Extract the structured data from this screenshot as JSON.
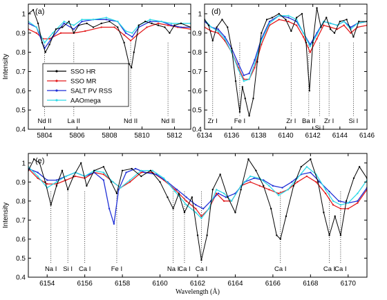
{
  "colors": {
    "SSO HR": "#000000",
    "SSO MR": "#e31a1c",
    "SALT PV RSS": "#1f2fd6",
    "AAOmega": "#2fd9e8"
  },
  "chart_data": [
    {
      "panel_label": "(a)",
      "type": "line",
      "xlim": [
        5803,
        5813
      ],
      "ylim": [
        0.4,
        1.05
      ],
      "xticks": [
        5804,
        5806,
        5808,
        5810,
        5812
      ],
      "yticks": [
        0.4,
        0.5,
        0.6,
        0.7,
        0.8,
        0.9,
        1
      ],
      "xlabel": "",
      "ylabel": "Intensity",
      "legend": {
        "placement": "lower-left",
        "entries": [
          "SSO HR",
          "SSO MR",
          "SALT PV RSS",
          "AAOmega"
        ]
      },
      "lines": [
        {
          "x": 5804.0,
          "label": "Nd II"
        },
        {
          "x": 5805.8,
          "label": "La II"
        },
        {
          "x": 5809.3,
          "label": "Nd II"
        },
        {
          "x": 5811.6,
          "label": "Nd II"
        }
      ],
      "series": [
        {
          "name": "SSO HR",
          "x": [
            5803,
            5803.3,
            5803.6,
            5803.85,
            5804.05,
            5804.3,
            5804.7,
            5805.1,
            5805.5,
            5805.8,
            5806.1,
            5806.6,
            5807.0,
            5807.5,
            5808.0,
            5808.5,
            5808.9,
            5809.2,
            5809.35,
            5809.5,
            5809.8,
            5810.2,
            5810.6,
            5811.0,
            5811.4,
            5811.7,
            5812.0,
            5812.4,
            5813
          ],
          "y": [
            1.0,
            1.02,
            0.95,
            0.85,
            0.8,
            0.84,
            0.92,
            0.93,
            0.96,
            0.9,
            0.94,
            0.95,
            0.93,
            0.95,
            0.96,
            0.93,
            0.85,
            0.74,
            0.72,
            0.8,
            0.94,
            0.96,
            0.95,
            0.94,
            0.93,
            0.9,
            0.94,
            0.95,
            0.93
          ]
        },
        {
          "name": "SSO MR",
          "x": [
            5803,
            5803.5,
            5803.9,
            5804.3,
            5805.0,
            5805.8,
            5806.5,
            5807.5,
            5808.3,
            5808.9,
            5809.3,
            5809.7,
            5810.3,
            5811.0,
            5811.6,
            5812.2,
            5813
          ],
          "y": [
            0.92,
            0.9,
            0.87,
            0.87,
            0.9,
            0.9,
            0.91,
            0.93,
            0.93,
            0.89,
            0.86,
            0.89,
            0.93,
            0.95,
            0.94,
            0.93,
            0.92
          ]
        },
        {
          "name": "SALT PV RSS",
          "x": [
            5803,
            5803.5,
            5804.0,
            5804.5,
            5805.2,
            5805.8,
            5806.3,
            5807.0,
            5807.8,
            5808.5,
            5809.0,
            5809.4,
            5809.8,
            5810.5,
            5811.2,
            5811.8,
            5812.4,
            5813
          ],
          "y": [
            0.95,
            0.93,
            0.82,
            0.88,
            0.95,
            0.92,
            0.96,
            0.97,
            0.97,
            0.96,
            0.9,
            0.88,
            0.93,
            0.96,
            0.96,
            0.94,
            0.93,
            0.93
          ]
        },
        {
          "name": "AAOmega",
          "x": [
            5803,
            5803.5,
            5804.0,
            5804.5,
            5805.2,
            5805.8,
            5806.3,
            5807.0,
            5807.8,
            5808.5,
            5809.0,
            5809.4,
            5809.8,
            5810.5,
            5811.2,
            5811.8,
            5812.4,
            5813
          ],
          "y": [
            0.96,
            0.93,
            0.85,
            0.9,
            0.96,
            0.94,
            0.97,
            0.97,
            0.98,
            0.96,
            0.91,
            0.9,
            0.94,
            0.97,
            0.96,
            0.95,
            0.95,
            0.95
          ]
        }
      ]
    },
    {
      "panel_label": "(d)",
      "type": "line",
      "xlim": [
        6134,
        6146
      ],
      "ylim": [
        0.4,
        1.05
      ],
      "xticks": [
        6134,
        6136,
        6138,
        6140,
        6142,
        6144,
        6146
      ],
      "yticks": [
        0.4,
        0.5,
        0.6,
        0.7,
        0.8,
        0.9,
        1
      ],
      "xlabel": "",
      "ylabel": "",
      "lines": [
        {
          "x": 6134.6,
          "label": "Zr I"
        },
        {
          "x": 6136.6,
          "label": "Fe I"
        },
        {
          "x": 6140.4,
          "label": "Zr I"
        },
        {
          "x": 6141.7,
          "label": "Ba II"
        },
        {
          "x": 6142.5,
          "label": "Si I"
        },
        {
          "x": 6143.2,
          "label": "Zr I"
        },
        {
          "x": 6145.0,
          "label": "Si I"
        }
      ],
      "series": [
        {
          "name": "SSO HR",
          "x": [
            6134,
            6134.3,
            6134.6,
            6134.9,
            6135.3,
            6135.7,
            6136.0,
            6136.3,
            6136.6,
            6136.8,
            6137.0,
            6137.3,
            6137.6,
            6137.9,
            6138.2,
            6138.6,
            6139.0,
            6139.5,
            6140.0,
            6140.4,
            6140.8,
            6141.2,
            6141.5,
            6141.75,
            6142.0,
            6142.3,
            6142.6,
            6143.0,
            6143.3,
            6143.6,
            6144.0,
            6144.5,
            6145.0,
            6145.4,
            6146
          ],
          "y": [
            0.97,
            0.94,
            0.86,
            0.93,
            0.97,
            0.93,
            0.82,
            0.65,
            0.49,
            0.62,
            0.56,
            0.47,
            0.56,
            0.75,
            0.9,
            0.97,
            0.98,
            1.0,
            0.97,
            0.91,
            0.98,
            1.0,
            0.85,
            0.6,
            0.85,
            1.03,
            0.93,
            0.98,
            0.92,
            0.9,
            0.96,
            0.97,
            0.88,
            0.96,
            0.96
          ]
        },
        {
          "name": "SSO MR",
          "x": [
            6134,
            6134.5,
            6135.0,
            6135.5,
            6136.0,
            6136.5,
            6136.9,
            6137.3,
            6137.7,
            6138.2,
            6138.8,
            6139.5,
            6140.2,
            6140.8,
            6141.3,
            6141.8,
            6142.3,
            6142.8,
            6143.3,
            6143.8,
            6144.3,
            6144.8,
            6145.3,
            6146
          ],
          "y": [
            0.93,
            0.91,
            0.9,
            0.86,
            0.8,
            0.72,
            0.66,
            0.66,
            0.72,
            0.84,
            0.94,
            0.97,
            0.96,
            0.94,
            0.88,
            0.8,
            0.87,
            0.94,
            0.93,
            0.92,
            0.94,
            0.9,
            0.93,
            0.94
          ]
        },
        {
          "name": "SALT PV RSS",
          "x": [
            6134,
            6134.5,
            6135.0,
            6135.5,
            6136.0,
            6136.5,
            6136.9,
            6137.3,
            6137.7,
            6138.2,
            6138.8,
            6139.5,
            6140.2,
            6140.8,
            6141.3,
            6141.8,
            6142.3,
            6142.8,
            6143.3,
            6143.8,
            6144.3,
            6144.8,
            6145.3,
            6146
          ],
          "y": [
            0.96,
            0.93,
            0.92,
            0.88,
            0.82,
            0.74,
            0.68,
            0.69,
            0.76,
            0.87,
            0.96,
            0.99,
            0.98,
            0.96,
            0.9,
            0.84,
            0.9,
            0.96,
            0.95,
            0.94,
            0.96,
            0.93,
            0.95,
            0.96
          ]
        },
        {
          "name": "AAOmega",
          "x": [
            6134,
            6134.5,
            6135.0,
            6135.5,
            6136.0,
            6136.5,
            6136.9,
            6137.3,
            6137.7,
            6138.2,
            6138.8,
            6139.5,
            6140.2,
            6140.8,
            6141.3,
            6141.8,
            6142.3,
            6142.8,
            6143.3,
            6143.8,
            6144.3,
            6144.8,
            6145.3,
            6146
          ],
          "y": [
            0.97,
            0.93,
            0.91,
            0.87,
            0.8,
            0.71,
            0.65,
            0.66,
            0.74,
            0.86,
            0.95,
            0.99,
            0.99,
            0.97,
            0.9,
            0.83,
            0.89,
            0.96,
            0.95,
            0.94,
            0.96,
            0.92,
            0.95,
            0.96
          ]
        }
      ]
    },
    {
      "panel_label": "(e)",
      "type": "line",
      "xlim": [
        6153,
        6171
      ],
      "ylim": [
        0.4,
        1.05
      ],
      "xticks": [
        6154,
        6156,
        6158,
        6160,
        6162,
        6164,
        6166,
        6168,
        6170
      ],
      "yticks": [
        0.4,
        0.5,
        0.6,
        0.7,
        0.8,
        0.9,
        1
      ],
      "xlabel": "Wavelength (Å)",
      "ylabel": "Intensity",
      "lines": [
        {
          "x": 6154.2,
          "label": "Na I"
        },
        {
          "x": 6155.1,
          "label": "Si I"
        },
        {
          "x": 6156.0,
          "label": "Ca I"
        },
        {
          "x": 6157.7,
          "label": "Fe I"
        },
        {
          "x": 6160.7,
          "label": "Na I"
        },
        {
          "x": 6161.3,
          "label": "Ca I"
        },
        {
          "x": 6162.2,
          "label": "Ca I"
        },
        {
          "x": 6166.4,
          "label": "Ca I"
        },
        {
          "x": 6169.0,
          "label": "Ca I"
        },
        {
          "x": 6169.6,
          "label": "Ca I"
        }
      ],
      "series": [
        {
          "name": "SSO HR",
          "x": [
            6153,
            6153.3,
            6153.6,
            6153.9,
            6154.2,
            6154.5,
            6154.8,
            6155.1,
            6155.4,
            6155.8,
            6156.1,
            6156.5,
            6157.0,
            6157.4,
            6157.7,
            6158.0,
            6158.5,
            6159.0,
            6159.5,
            6160.0,
            6160.4,
            6160.7,
            6161.0,
            6161.3,
            6161.7,
            6162.0,
            6162.2,
            6162.5,
            6162.8,
            6163.2,
            6163.6,
            6164.0,
            6164.3,
            6164.7,
            6165.1,
            6165.5,
            6165.9,
            6166.2,
            6166.4,
            6166.7,
            6167.1,
            6167.5,
            6168.0,
            6168.4,
            6168.7,
            6169.0,
            6169.3,
            6169.6,
            6169.9,
            6170.3,
            6170.6,
            6171
          ],
          "y": [
            0.96,
            1.02,
            1.0,
            0.9,
            0.78,
            0.88,
            0.96,
            0.86,
            0.93,
            1.0,
            0.88,
            0.96,
            0.98,
            0.9,
            0.84,
            0.96,
            0.97,
            0.93,
            0.96,
            0.9,
            0.82,
            0.76,
            0.84,
            0.74,
            0.82,
            0.62,
            0.49,
            0.62,
            0.86,
            0.94,
            0.82,
            0.74,
            0.86,
            1.02,
            0.96,
            0.88,
            0.76,
            0.62,
            0.6,
            0.72,
            0.88,
            0.98,
            1.02,
            0.9,
            0.74,
            0.62,
            0.72,
            0.62,
            0.8,
            0.92,
            0.98,
            0.92
          ]
        },
        {
          "name": "SSO MR",
          "x": [
            6153,
            6153.5,
            6154.0,
            6154.5,
            6155.0,
            6155.5,
            6156.0,
            6156.5,
            6157.0,
            6157.5,
            6157.9,
            6158.4,
            6159.0,
            6159.6,
            6160.2,
            6160.8,
            6161.4,
            6161.9,
            6162.2,
            6162.6,
            6163.0,
            6163.4,
            6163.8,
            6164.3,
            6164.8,
            6165.3,
            6165.8,
            6166.3,
            6166.8,
            6167.3,
            6167.8,
            6168.3,
            6168.8,
            6169.2,
            6169.6,
            6170.0,
            6170.5,
            6171
          ],
          "y": [
            0.97,
            0.92,
            0.89,
            0.89,
            0.91,
            0.93,
            0.92,
            0.95,
            0.94,
            0.9,
            0.87,
            0.9,
            0.95,
            0.95,
            0.91,
            0.86,
            0.8,
            0.76,
            0.72,
            0.76,
            0.84,
            0.8,
            0.8,
            0.88,
            0.9,
            0.88,
            0.86,
            0.84,
            0.86,
            0.9,
            0.93,
            0.9,
            0.84,
            0.78,
            0.76,
            0.76,
            0.79,
            0.86
          ]
        },
        {
          "name": "SALT PV RSS",
          "x": [
            6153,
            6153.5,
            6154.0,
            6154.5,
            6155.0,
            6155.5,
            6156.0,
            6156.5,
            6157.0,
            6157.3,
            6157.55,
            6157.8,
            6158.2,
            6158.7,
            6159.2,
            6159.8,
            6160.4,
            6160.9,
            6161.4,
            6161.9,
            6162.3,
            6162.7,
            6163.1,
            6163.5,
            6164.0,
            6164.5,
            6165.0,
            6165.5,
            6166.0,
            6166.5,
            6167.0,
            6167.5,
            6168.0,
            6168.5,
            6169.0,
            6169.5,
            6170.0,
            6170.5,
            6171
          ],
          "y": [
            0.97,
            0.95,
            0.91,
            0.91,
            0.93,
            0.95,
            0.93,
            0.95,
            0.91,
            0.76,
            0.68,
            0.86,
            0.95,
            0.97,
            0.95,
            0.94,
            0.9,
            0.86,
            0.82,
            0.78,
            0.76,
            0.8,
            0.84,
            0.82,
            0.84,
            0.9,
            0.92,
            0.91,
            0.88,
            0.87,
            0.9,
            0.94,
            0.95,
            0.9,
            0.85,
            0.8,
            0.79,
            0.8,
            0.87
          ]
        },
        {
          "name": "AAOmega",
          "x": [
            6153,
            6153.5,
            6154.0,
            6154.5,
            6155.0,
            6155.5,
            6156.0,
            6156.5,
            6157.0,
            6157.5,
            6157.9,
            6158.4,
            6159.0,
            6159.6,
            6160.2,
            6160.8,
            6161.4,
            6161.9,
            6162.2,
            6162.6,
            6163.0,
            6163.4,
            6163.8,
            6164.3,
            6164.8,
            6165.3,
            6165.8,
            6166.3,
            6166.8,
            6167.3,
            6167.8,
            6168.3,
            6168.8,
            6169.2,
            6169.6,
            6170.0,
            6170.5,
            6171
          ],
          "y": [
            0.98,
            0.93,
            0.87,
            0.9,
            0.93,
            0.95,
            0.93,
            0.96,
            0.95,
            0.9,
            0.87,
            0.91,
            0.96,
            0.96,
            0.92,
            0.85,
            0.78,
            0.74,
            0.71,
            0.76,
            0.86,
            0.84,
            0.8,
            0.88,
            0.93,
            0.92,
            0.88,
            0.83,
            0.86,
            0.92,
            0.98,
            0.94,
            0.86,
            0.8,
            0.78,
            0.79,
            0.84,
            0.91
          ]
        }
      ]
    }
  ]
}
